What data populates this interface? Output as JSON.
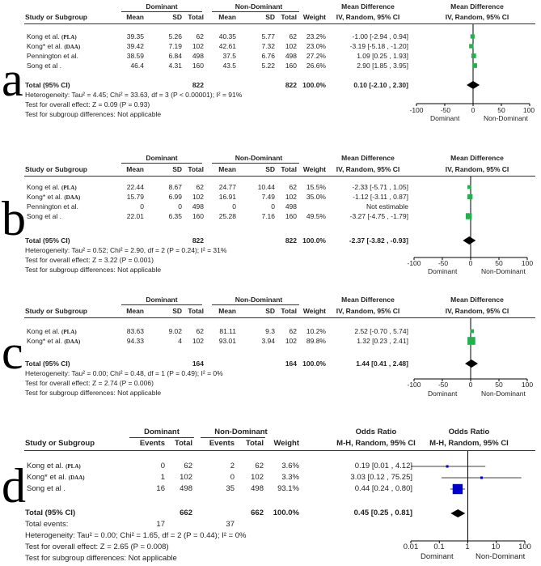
{
  "chart_data": [
    {
      "panel_letter": "a",
      "type": "forest",
      "measure": "continuous",
      "groups": [
        "Dominant",
        "Non-Dominant"
      ],
      "columns": [
        "Study or Subgroup",
        "Mean",
        "SD",
        "Total",
        "Mean",
        "SD",
        "Total",
        "Weight"
      ],
      "effect_header": [
        "Mean Difference",
        "IV, Random, 95% CI"
      ],
      "plot_header": [
        "Mean Difference",
        "IV, Random, 95% CI"
      ],
      "studies": [
        {
          "name": "Kong et al.",
          "tag": "(PLA)",
          "m1": "39.35",
          "sd1": "5.26",
          "n1": "62",
          "m2": "40.35",
          "sd2": "5.77",
          "n2": "62",
          "weight": "23.2%",
          "ci_text": "-1.00 [-2.94 , 0.94]",
          "est": -1.0,
          "lo": -2.94,
          "hi": 0.94,
          "box": 0.25
        },
        {
          "name": "Kong* et al.",
          "tag": "(DAA)",
          "m1": "39.42",
          "sd1": "7.19",
          "n1": "102",
          "m2": "42.61",
          "sd2": "7.32",
          "n2": "102",
          "weight": "23.0%",
          "ci_text": "-3.19 [-5.18 , -1.20]",
          "est": -3.19,
          "lo": -5.18,
          "hi": -1.2,
          "box": 0.25
        },
        {
          "name": "Pennington et al.",
          "tag": "",
          "m1": "38.59",
          "sd1": "6.84",
          "n1": "498",
          "m2": "37.5",
          "sd2": "6.76",
          "n2": "498",
          "weight": "27.2%",
          "ci_text": "1.09 [0.25 , 1.93]",
          "est": 1.09,
          "lo": 0.25,
          "hi": 1.93,
          "box": 0.3
        },
        {
          "name": "Song et al .",
          "tag": "",
          "m1": "46.4",
          "sd1": "4.31",
          "n1": "160",
          "m2": "43.5",
          "sd2": "5.22",
          "n2": "160",
          "weight": "26.6%",
          "ci_text": "2.90 [1.85 , 3.95]",
          "est": 2.9,
          "lo": 1.85,
          "hi": 3.95,
          "box": 0.3
        }
      ],
      "total": {
        "label": "Total (95% CI)",
        "n1": "822",
        "n2": "822",
        "weight": "100.0%",
        "ci_text": "0.10 [-2.10 , 2.30]",
        "est": 0.1,
        "lo": -2.1,
        "hi": 2.3
      },
      "notes": [
        "Heterogeneity: Tau² = 4.45; Chi² = 33.63, df = 3 (P < 0.00001); I² = 91%",
        "Test for overall effect: Z = 0.09 (P = 0.93)",
        "Test for subgroup differences: Not applicable"
      ],
      "axis": {
        "scale": "linear",
        "min": -100,
        "max": 100,
        "ticks": [
          "-100",
          "-50",
          "0",
          "50",
          "100"
        ],
        "left_label": "Dominant",
        "right_label": "Non-Dominant"
      },
      "colors": {
        "box": "#22b14c",
        "diamond": "#000000"
      }
    },
    {
      "panel_letter": "b",
      "type": "forest",
      "measure": "continuous",
      "groups": [
        "Dominant",
        "Non-Dominant"
      ],
      "columns": [
        "Study or Subgroup",
        "Mean",
        "SD",
        "Total",
        "Mean",
        "SD",
        "Total",
        "Weight"
      ],
      "effect_header": [
        "Mean Difference",
        "IV, Random, 95% CI"
      ],
      "plot_header": [
        "Mean Difference",
        "IV, Random, 95% CI"
      ],
      "studies": [
        {
          "name": "Kong et al.",
          "tag": "(PLA)",
          "m1": "22.44",
          "sd1": "8.67",
          "n1": "62",
          "m2": "24.77",
          "sd2": "10.44",
          "n2": "62",
          "weight": "15.5%",
          "ci_text": "-2.33 [-5.71 , 1.05]",
          "est": -2.33,
          "lo": -5.71,
          "hi": 1.05,
          "box": 0.2
        },
        {
          "name": "Kong* et al.",
          "tag": "(DAA)",
          "m1": "15.79",
          "sd1": "6.99",
          "n1": "102",
          "m2": "16.91",
          "sd2": "7.49",
          "n2": "102",
          "weight": "35.0%",
          "ci_text": "-1.12 [-3.11 , 0.87]",
          "est": -1.12,
          "lo": -3.11,
          "hi": 0.87,
          "box": 0.35
        },
        {
          "name": "Pennington et al.",
          "tag": "",
          "m1": "0",
          "sd1": "0",
          "n1": "498",
          "m2": "0",
          "sd2": "0",
          "n2": "498",
          "weight": "",
          "ci_text": "Not estimable",
          "est": null,
          "lo": null,
          "hi": null,
          "box": 0
        },
        {
          "name": "Song et al .",
          "tag": "",
          "m1": "22.01",
          "sd1": "6.35",
          "n1": "160",
          "m2": "25.28",
          "sd2": "7.16",
          "n2": "160",
          "weight": "49.5%",
          "ci_text": "-3.27 [-4.75 , -1.79]",
          "est": -3.27,
          "lo": -4.75,
          "hi": -1.79,
          "box": 0.45
        }
      ],
      "total": {
        "label": "Total (95% CI)",
        "n1": "822",
        "n2": "822",
        "weight": "100.0%",
        "ci_text": "-2.37 [-3.82 , -0.93]",
        "est": -2.37,
        "lo": -3.82,
        "hi": -0.93
      },
      "notes": [
        "Heterogeneity: Tau² = 0.52; Chi² = 2.90, df = 2 (P = 0.24); I² = 31%",
        "Test for overall effect: Z = 3.22 (P = 0.001)",
        "Test for subgroup differences: Not applicable"
      ],
      "axis": {
        "scale": "linear",
        "min": -100,
        "max": 100,
        "ticks": [
          "-100",
          "-50",
          "0",
          "50",
          "100"
        ],
        "left_label": "Dominant",
        "right_label": "Non-Dominant"
      },
      "colors": {
        "box": "#22b14c",
        "diamond": "#000000"
      }
    },
    {
      "panel_letter": "c",
      "type": "forest",
      "measure": "continuous",
      "groups": [
        "Dominant",
        "Non-Dominant"
      ],
      "columns": [
        "Study or Subgroup",
        "Mean",
        "SD",
        "Total",
        "Mean",
        "SD",
        "Total",
        "Weight"
      ],
      "effect_header": [
        "Mean Difference",
        "IV, Random, 95% CI"
      ],
      "plot_header": [
        "Mean Difference",
        "IV, Random, 95% CI"
      ],
      "studies": [
        {
          "name": "Kong et al.",
          "tag": "(PLA)",
          "m1": "83.63",
          "sd1": "9.02",
          "n1": "62",
          "m2": "81.11",
          "sd2": "9.3",
          "n2": "62",
          "weight": "10.2%",
          "ci_text": "2.52 [-0.70 , 5.74]",
          "est": 2.52,
          "lo": -0.7,
          "hi": 5.74,
          "box": 0.2
        },
        {
          "name": "Kong* et al.",
          "tag": "(DAA)",
          "m1": "94.33",
          "sd1": "4",
          "n1": "102",
          "m2": "93.01",
          "sd2": "3.94",
          "n2": "102",
          "weight": "89.8%",
          "ci_text": "1.32 [0.23 , 2.41]",
          "est": 1.32,
          "lo": 0.23,
          "hi": 2.41,
          "box": 0.65
        }
      ],
      "total": {
        "label": "Total (95% CI)",
        "n1": "164",
        "n2": "164",
        "weight": "100.0%",
        "ci_text": "1.44 [0.41 , 2.48]",
        "est": 1.44,
        "lo": 0.41,
        "hi": 2.48
      },
      "notes": [
        "Heterogeneity: Tau² = 0.00; Chi² = 0.48, df = 1 (P = 0.49); I² = 0%",
        "Test for overall effect: Z = 2.74 (P = 0.006)",
        "Test for subgroup differences: Not applicable"
      ],
      "axis": {
        "scale": "linear",
        "min": -100,
        "max": 100,
        "ticks": [
          "-100",
          "-50",
          "0",
          "50",
          "100"
        ],
        "left_label": "Dominant",
        "right_label": "Non-Dominant"
      },
      "colors": {
        "box": "#22b14c",
        "diamond": "#000000"
      }
    },
    {
      "panel_letter": "d",
      "type": "forest",
      "measure": "binary",
      "groups": [
        "Dominant",
        "Non-Dominant"
      ],
      "columns": [
        "Study or Subgroup",
        "Events",
        "Total",
        "Events",
        "Total",
        "Weight"
      ],
      "effect_header": [
        "Odds Ratio",
        "M-H, Random, 95% CI"
      ],
      "plot_header": [
        "Odds Ratio",
        "M-H, Random, 95% CI"
      ],
      "studies": [
        {
          "name": "Kong et al.",
          "tag": "(PLA)",
          "e1": "0",
          "n1": "62",
          "e2": "2",
          "n2": "62",
          "weight": "3.6%",
          "ci_text": "0.19 [0.01 , 4.12]",
          "est": 0.19,
          "lo": 0.01,
          "hi": 4.12,
          "box": 0.05
        },
        {
          "name": "Kong* et al.",
          "tag": "(DAA)",
          "e1": "1",
          "n1": "102",
          "e2": "0",
          "n2": "102",
          "weight": "3.3%",
          "ci_text": "3.03 [0.12 , 75.25]",
          "est": 3.03,
          "lo": 0.12,
          "hi": 75.25,
          "box": 0.05
        },
        {
          "name": "Song et al .",
          "tag": "",
          "e1": "16",
          "n1": "498",
          "e2": "35",
          "n2": "498",
          "weight": "93.1%",
          "ci_text": "0.44 [0.24 , 0.80]",
          "est": 0.44,
          "lo": 0.24,
          "hi": 0.8,
          "box": 0.9
        }
      ],
      "total": {
        "label": "Total (95% CI)",
        "n1": "662",
        "n2": "662",
        "weight": "100.0%",
        "ci_text": "0.45 [0.25 , 0.81]",
        "est": 0.45,
        "lo": 0.25,
        "hi": 0.81,
        "events_label": "Total events:",
        "e1": "17",
        "e2": "37"
      },
      "notes": [
        "Heterogeneity: Tau² = 0.00; Chi² = 1.65, df = 2 (P = 0.44); I² = 0%",
        "Test for overall effect: Z = 2.65 (P = 0.008)",
        "Test for subgroup differences: Not applicable"
      ],
      "axis": {
        "scale": "log",
        "min": 0.01,
        "max": 100,
        "ticks": [
          "0.01",
          "0.1",
          "1",
          "10",
          "100"
        ],
        "left_label": "Dominant",
        "right_label": "Non-Dominant"
      },
      "colors": {
        "box": "#0000cc",
        "diamond": "#000000"
      }
    }
  ]
}
